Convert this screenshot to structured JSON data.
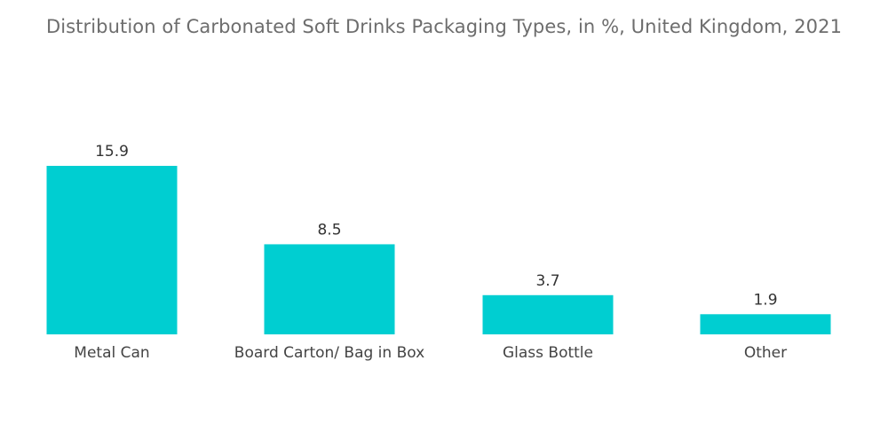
{
  "chart_data": {
    "type": "bar",
    "title": "Distribution of Carbonated Soft Drinks Packaging Types, in %, United Kingdom, 2021",
    "categories": [
      "Metal Can",
      "Board Carton/ Bag in Box",
      "Glass Bottle",
      "Other"
    ],
    "values": [
      15.9,
      8.5,
      3.7,
      1.9
    ],
    "value_labels": [
      "15.9",
      "8.5",
      "3.7",
      "1.9"
    ],
    "xlabel": "",
    "ylabel": "",
    "ylim": [
      0,
      15.9
    ],
    "grid": false,
    "legend": "none",
    "bar_color": "#00CED1"
  }
}
